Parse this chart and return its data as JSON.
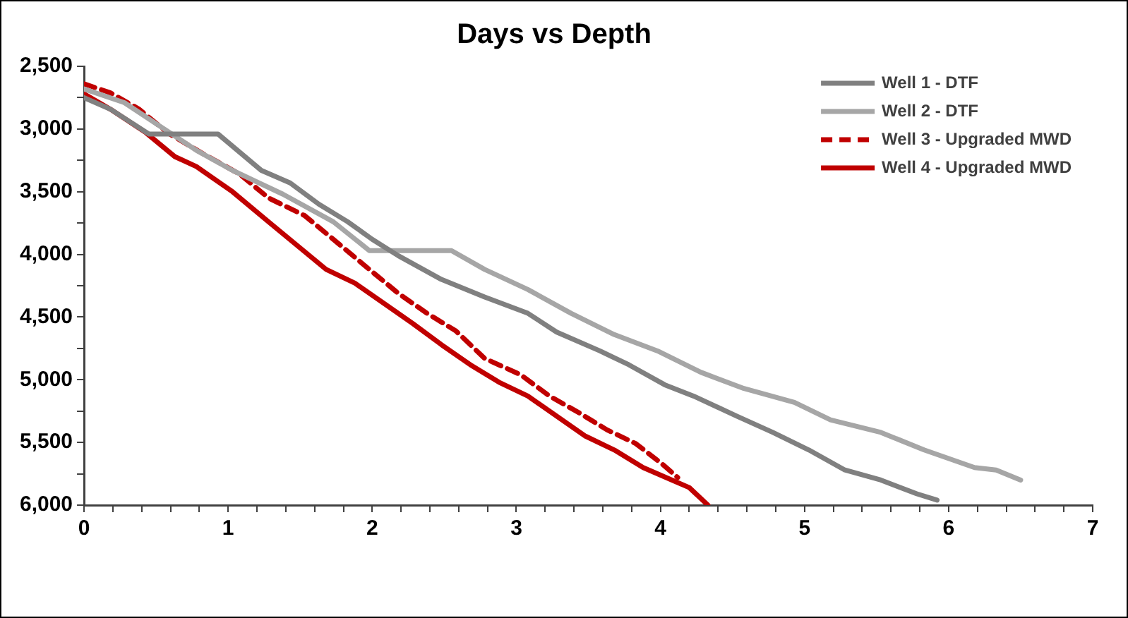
{
  "chart_data": {
    "type": "line",
    "title": "Days vs Depth",
    "xlim": [
      0,
      7
    ],
    "xticks": [
      0,
      {
        "value": 0.2,
        "label": null
      },
      {
        "value": 0.4,
        "label": null
      },
      {
        "value": 0.6,
        "label": null
      },
      {
        "value": 0.8,
        "label": null
      },
      1,
      {
        "value": 1.2,
        "label": null
      },
      {
        "value": 1.4,
        "label": null
      },
      {
        "value": 1.6,
        "label": null
      },
      {
        "value": 1.8,
        "label": null
      },
      2,
      {
        "value": 2.2,
        "label": null
      },
      {
        "value": 2.4,
        "label": null
      },
      {
        "value": 2.6,
        "label": null
      },
      {
        "value": 2.8,
        "label": null
      },
      3,
      {
        "value": 3.2,
        "label": null
      },
      {
        "value": 3.4,
        "label": null
      },
      {
        "value": 3.6,
        "label": null
      },
      {
        "value": 3.8,
        "label": null
      },
      4,
      {
        "value": 4.2,
        "label": null
      },
      {
        "value": 4.4,
        "label": null
      },
      {
        "value": 4.6,
        "label": null
      },
      {
        "value": 4.8,
        "label": null
      },
      5,
      {
        "value": 5.2,
        "label": null
      },
      {
        "value": 5.4,
        "label": null
      },
      {
        "value": 5.6,
        "label": null
      },
      {
        "value": 5.8,
        "label": null
      },
      6,
      {
        "value": 6.2,
        "label": null
      },
      {
        "value": 6.4,
        "label": null
      },
      {
        "value": 6.6,
        "label": null
      },
      {
        "value": 6.8,
        "label": null
      },
      7
    ],
    "ylim": [
      6000,
      2500
    ],
    "yticks": [
      {
        "value": 2500,
        "label": "2,500"
      },
      {
        "value": 2750,
        "label": null
      },
      {
        "value": 3000,
        "label": "3,000"
      },
      {
        "value": 3250,
        "label": null
      },
      {
        "value": 3500,
        "label": "3,500"
      },
      {
        "value": 3750,
        "label": null
      },
      {
        "value": 4000,
        "label": "4,000"
      },
      {
        "value": 4250,
        "label": null
      },
      {
        "value": 4500,
        "label": "4,500"
      },
      {
        "value": 4750,
        "label": null
      },
      {
        "value": 5000,
        "label": "5,000"
      },
      {
        "value": 5250,
        "label": null
      },
      {
        "value": 5500,
        "label": "5,500"
      },
      {
        "value": 5750,
        "label": null
      },
      {
        "value": 6000,
        "label": "6,000"
      }
    ],
    "grid": false,
    "legend": "top right",
    "marker": "none",
    "series": [
      {
        "name": "Well 1 - DTF",
        "color": "#808080",
        "line_style": "solid",
        "x": [
          0,
          0.18,
          0.45,
          0.93,
          1.23,
          1.43,
          1.63,
          1.83,
          2.0,
          2.18,
          2.48,
          2.78,
          3.08,
          3.28,
          3.58,
          3.78,
          4.03,
          4.23,
          4.53,
          4.78,
          5.03,
          5.28,
          5.53,
          5.78,
          5.92
        ],
        "values": [
          2750,
          2840,
          3040,
          3040,
          3330,
          3430,
          3600,
          3740,
          3880,
          4010,
          4200,
          4340,
          4470,
          4620,
          4770,
          4880,
          5040,
          5130,
          5290,
          5420,
          5560,
          5720,
          5800,
          5910,
          5960
        ]
      },
      {
        "name": "Well 2 - DTF",
        "color": "#a6a6a6",
        "line_style": "solid",
        "x": [
          0,
          0.28,
          0.53,
          0.78,
          1.03,
          1.38,
          1.73,
          1.98,
          2.55,
          2.78,
          3.08,
          3.38,
          3.68,
          3.98,
          4.28,
          4.58,
          4.93,
          5.18,
          5.53,
          5.83,
          6.18,
          6.33,
          6.5
        ],
        "values": [
          2680,
          2790,
          2980,
          3170,
          3330,
          3520,
          3740,
          3970,
          3970,
          4120,
          4280,
          4470,
          4640,
          4770,
          4940,
          5070,
          5180,
          5320,
          5420,
          5560,
          5700,
          5720,
          5800
        ]
      },
      {
        "name": "Well 3 - Upgraded MWD",
        "color": "#c00000",
        "line_style": "dashed",
        "x": [
          0,
          0.18,
          0.38,
          0.58,
          0.83,
          1.08,
          1.28,
          1.53,
          1.73,
          1.98,
          2.18,
          2.38,
          2.58,
          2.78,
          3.03,
          3.23,
          3.43,
          3.63,
          3.83,
          4.01,
          4.12
        ],
        "values": [
          2640,
          2710,
          2840,
          3030,
          3200,
          3360,
          3550,
          3690,
          3880,
          4120,
          4310,
          4470,
          4610,
          4830,
          4960,
          5130,
          5260,
          5400,
          5510,
          5670,
          5780
        ]
      },
      {
        "name": "Well 4 - Upgraded MWD",
        "color": "#c00000",
        "line_style": "solid",
        "x": [
          0,
          0.18,
          0.43,
          0.63,
          0.78,
          1.03,
          1.28,
          1.48,
          1.68,
          1.88,
          2.08,
          2.28,
          2.48,
          2.68,
          2.88,
          3.08,
          3.28,
          3.48,
          3.68,
          3.88,
          4.08,
          4.2,
          4.33
        ],
        "values": [
          2720,
          2840,
          3030,
          3220,
          3300,
          3500,
          3740,
          3930,
          4120,
          4230,
          4390,
          4550,
          4720,
          4880,
          5020,
          5130,
          5290,
          5450,
          5560,
          5700,
          5800,
          5860,
          6000
        ]
      }
    ]
  }
}
